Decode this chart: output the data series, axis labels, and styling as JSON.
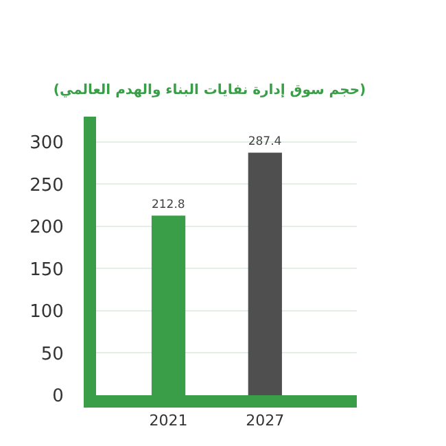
{
  "chart_data": {
    "type": "bar",
    "title": "(حجم سوق إدارة نفايات البناء والهدم العالمي)",
    "categories": [
      "2021",
      "2027"
    ],
    "values": [
      212.8,
      287.4
    ],
    "colors": [
      "#3a9e48",
      "#4f4f4f"
    ],
    "ylim": [
      0,
      330
    ],
    "yticks": [
      0,
      50,
      100,
      150,
      200,
      250,
      300
    ],
    "grid": "y",
    "data_labels": true,
    "legend": false
  }
}
